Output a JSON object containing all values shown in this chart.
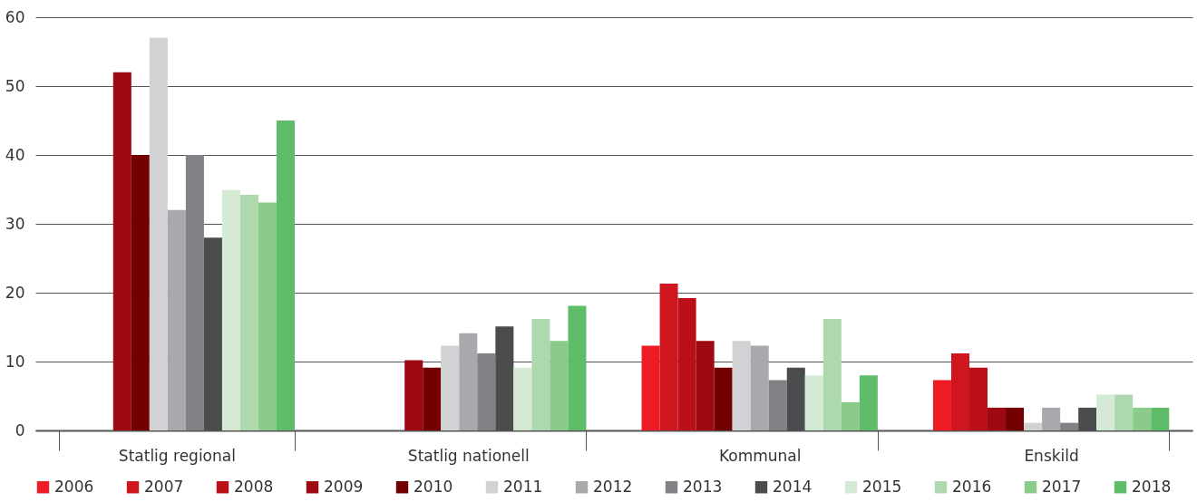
{
  "chart_data": {
    "type": "bar",
    "categories": [
      "Statlig regional",
      "Statlig nationell",
      "Kommunal",
      "Enskild"
    ],
    "ylim": [
      0,
      60
    ],
    "yticks": [
      0,
      10,
      20,
      30,
      40,
      50,
      60
    ],
    "grid": "y",
    "legend": "bottom",
    "series": [
      {
        "name": "2006",
        "color": "#ed1c24",
        "values": [
          null,
          null,
          12.3,
          7.3
        ]
      },
      {
        "name": "2007",
        "color": "#cf161e",
        "values": [
          null,
          null,
          21.3,
          11.2
        ]
      },
      {
        "name": "2008",
        "color": "#bb1019",
        "values": [
          null,
          null,
          19.2,
          9.1
        ]
      },
      {
        "name": "2009",
        "color": "#9e0810",
        "values": [
          52,
          10.2,
          13.0,
          3.3
        ]
      },
      {
        "name": "2010",
        "color": "#720000",
        "values": [
          40,
          9.1,
          9.1,
          3.3
        ]
      },
      {
        "name": "2011",
        "color": "#d1d2d4",
        "values": [
          57,
          12.3,
          13.0,
          1.1
        ]
      },
      {
        "name": "2012",
        "color": "#a8a9ad",
        "values": [
          32,
          14.1,
          12.3,
          3.3
        ]
      },
      {
        "name": "2013",
        "color": "#808285",
        "values": [
          40,
          11.2,
          7.3,
          1.1
        ]
      },
      {
        "name": "2014",
        "color": "#4b4c4e",
        "values": [
          28,
          15.1,
          9.1,
          3.3
        ]
      },
      {
        "name": "2015",
        "color": "#d4ead5",
        "values": [
          34.9,
          9.1,
          8.0,
          5.2
        ]
      },
      {
        "name": "2016",
        "color": "#aed9ae",
        "values": [
          34.2,
          16.2,
          16.2,
          5.2
        ]
      },
      {
        "name": "2017",
        "color": "#8acb89",
        "values": [
          33.1,
          13.0,
          4.1,
          3.3
        ]
      },
      {
        "name": "2018",
        "color": "#5fbd69",
        "values": [
          45,
          18.1,
          8.0,
          3.3
        ]
      }
    ]
  }
}
